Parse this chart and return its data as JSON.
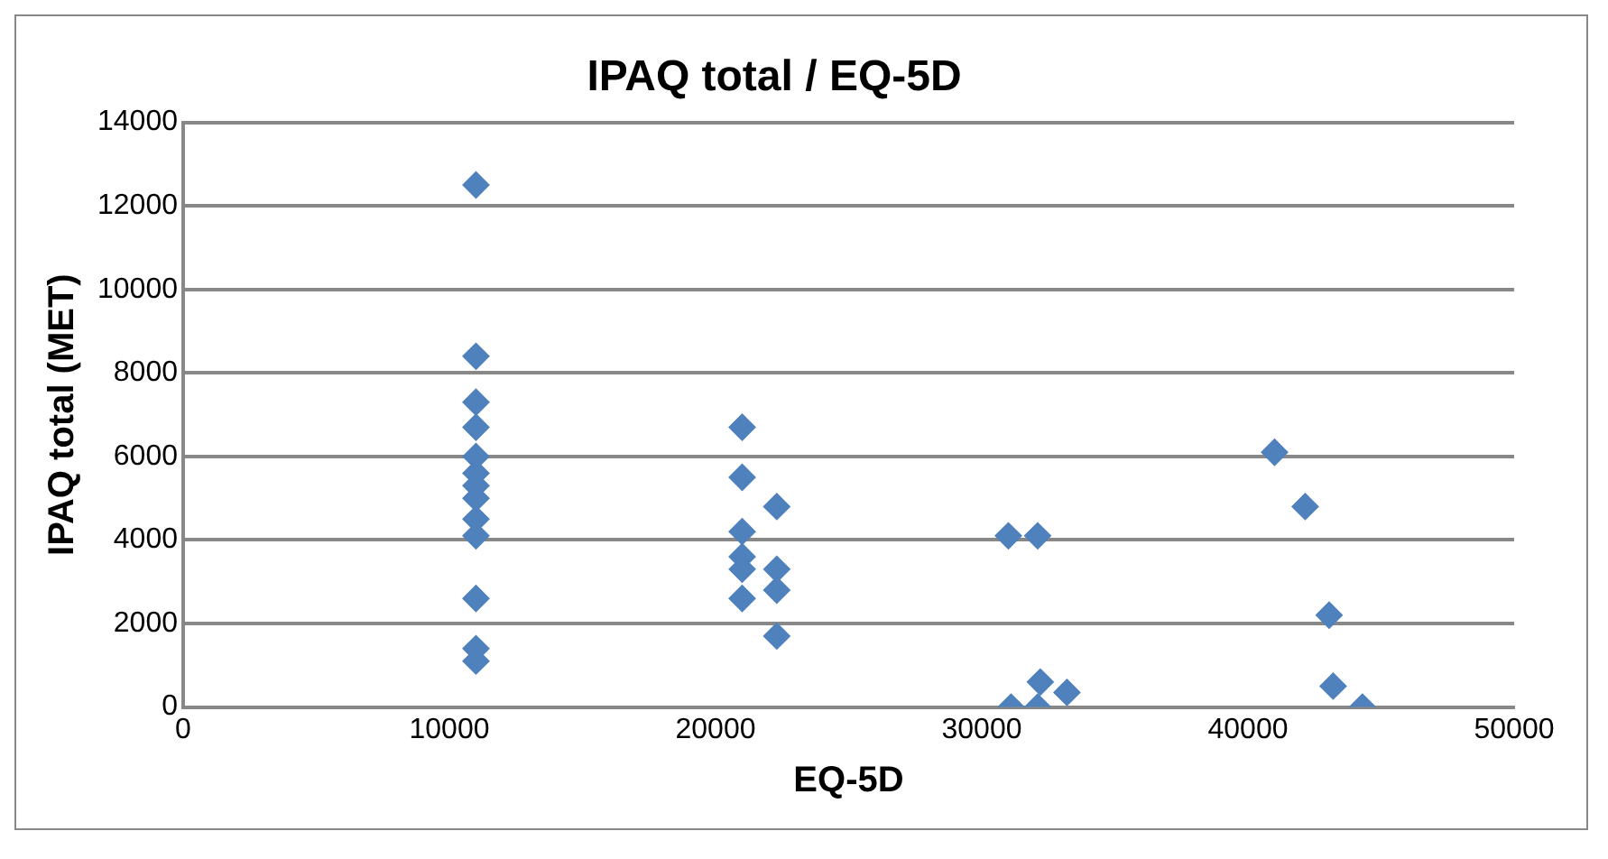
{
  "chart_data": {
    "type": "scatter",
    "title": "IPAQ total / EQ-5D",
    "xlabel": "EQ-5D",
    "ylabel": "IPAQ total (MET)",
    "x": [
      11000,
      11000,
      11000,
      11000,
      11000,
      11000,
      11000,
      11000,
      11000,
      11000,
      11000,
      11000,
      11000,
      21000,
      21000,
      22300,
      21000,
      21000,
      21000,
      22300,
      22300,
      21000,
      22300,
      31000,
      32100,
      31100,
      32200,
      32100,
      33200,
      41000,
      42150,
      43050,
      43200,
      44300
    ],
    "series": [
      {
        "color": "#4f81bd",
        "values": [
          12500,
          8400,
          7300,
          6700,
          6000,
          5600,
          5300,
          5000,
          4500,
          4100,
          2600,
          1400,
          1100,
          6700,
          5500,
          4800,
          4200,
          3600,
          3300,
          3300,
          2800,
          2600,
          1700,
          4100,
          4100,
          0,
          600,
          0,
          350,
          6100,
          4800,
          2200,
          500,
          0
        ]
      }
    ],
    "xlim": [
      0,
      50000
    ],
    "xticks": [
      0,
      10000,
      20000,
      30000,
      40000,
      50000
    ],
    "ylim": [
      0,
      14000
    ],
    "yticks": [
      0,
      2000,
      4000,
      6000,
      8000,
      10000,
      12000,
      14000
    ],
    "grid": "y",
    "legend": false,
    "marker": "diamond"
  }
}
